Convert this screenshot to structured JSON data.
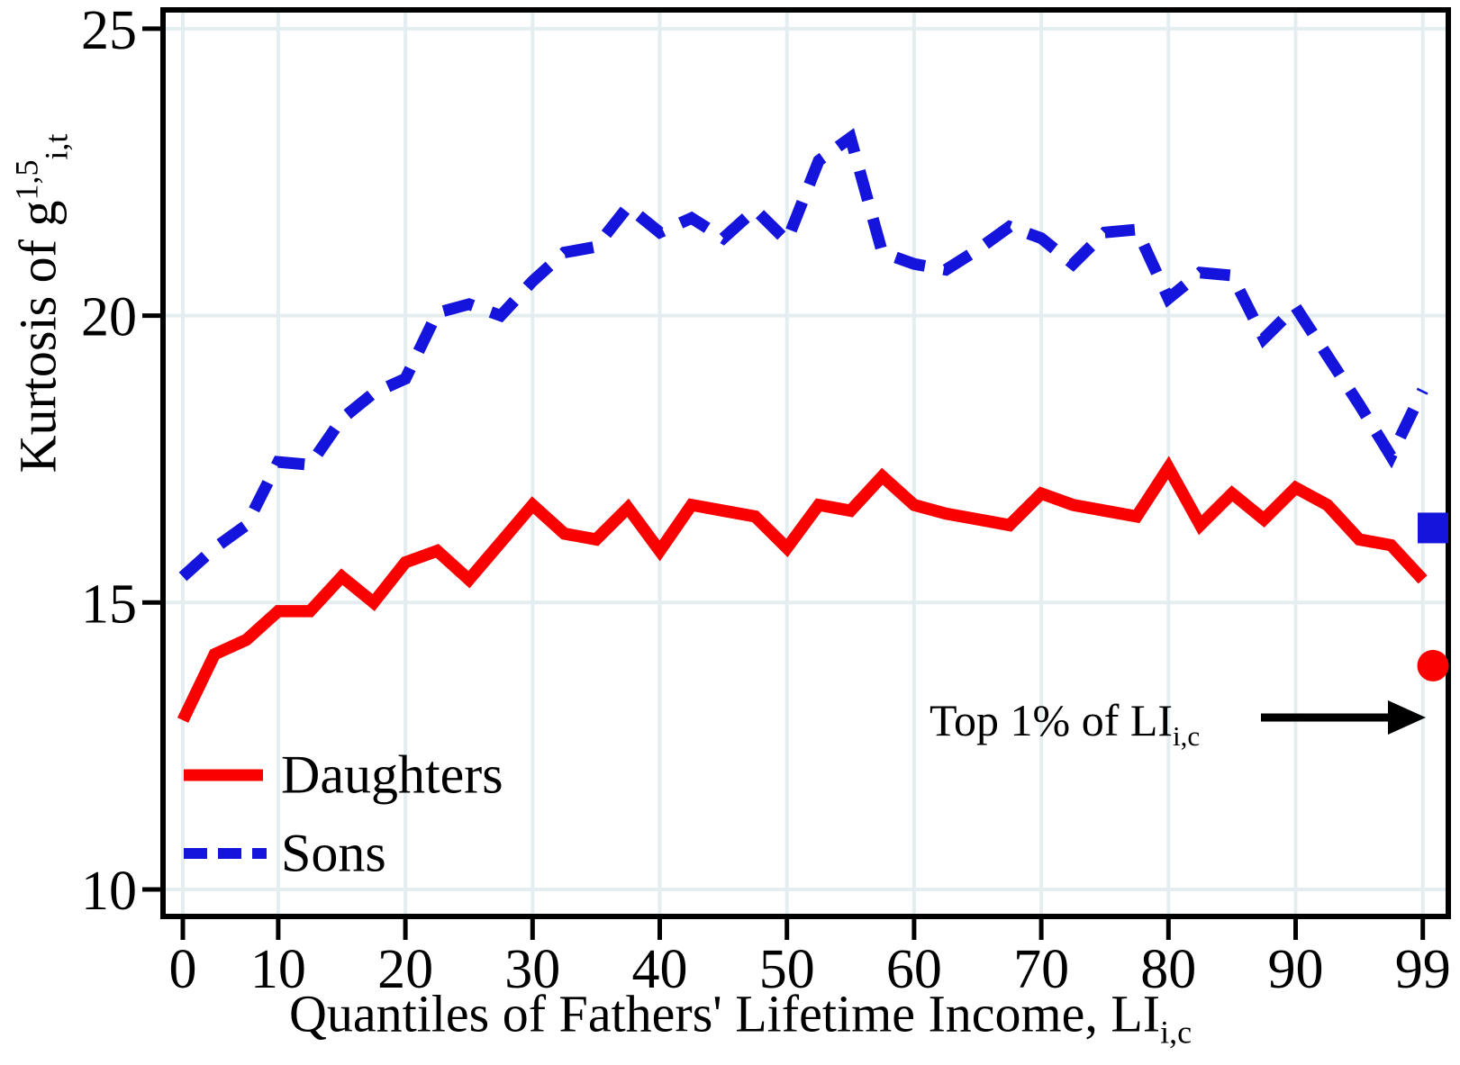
{
  "figure": {
    "background": "#ffffff",
    "ylabel": {
      "prefix": "Kurtosis of g",
      "sup": "1,5",
      "sub": "i,t"
    },
    "xlabel": {
      "prefix": "Quantiles of Fathers' Lifetime Income, LI",
      "sub": "i,c"
    },
    "annotation": {
      "prefix": "Top 1% of LI",
      "sub": "i,c"
    },
    "legend": {
      "daughters_label": "Daughters",
      "sons_label": "Sons"
    }
  },
  "chart_data": {
    "type": "line",
    "title": "",
    "xlabel": "Quantiles of Fathers' Lifetime Income, LI_{i,c}",
    "ylabel": "Kurtosis of g^{1,5}_{i,t}",
    "grid": true,
    "legend_position": "inside bottom-left",
    "x_axis": {
      "tick_labels": [
        "0",
        "10",
        "20",
        "30",
        "40",
        "50",
        "60",
        "70",
        "80",
        "90",
        "99"
      ],
      "tick_point_indices": [
        1,
        4,
        8,
        12,
        16,
        20,
        24,
        28,
        32,
        36,
        40
      ],
      "note": "40 evenly spaced quantile-bin points; separate top-1% markers plotted right of the 99 tick"
    },
    "y_axis": {
      "ticks": [
        10,
        15,
        20,
        25
      ],
      "ylim": [
        9.55,
        25.35
      ]
    },
    "series": [
      {
        "name": "Daughters",
        "color": "#fa0000",
        "style": "solid",
        "values": [
          12.95,
          14.1,
          14.35,
          14.85,
          14.85,
          15.45,
          15.0,
          15.7,
          15.9,
          15.4,
          16.05,
          16.7,
          16.2,
          16.1,
          16.65,
          15.9,
          16.7,
          16.6,
          16.5,
          15.95,
          16.7,
          16.6,
          17.2,
          16.7,
          16.55,
          16.45,
          16.35,
          16.9,
          16.7,
          16.6,
          16.5,
          17.35,
          16.35,
          16.9,
          16.45,
          17.0,
          16.7,
          16.1,
          16.0,
          15.4
        ]
      },
      {
        "name": "Sons",
        "color": "#1414dd",
        "style": "dashed",
        "values": [
          15.45,
          15.95,
          16.35,
          17.45,
          17.4,
          18.2,
          18.65,
          18.9,
          20.05,
          20.2,
          20.0,
          20.6,
          21.1,
          21.2,
          21.9,
          21.45,
          21.7,
          21.35,
          21.85,
          21.3,
          22.7,
          23.1,
          21.1,
          20.9,
          20.8,
          21.15,
          21.55,
          21.35,
          20.9,
          21.45,
          21.5,
          20.3,
          20.75,
          20.7,
          19.6,
          20.15,
          19.3,
          18.45,
          17.55,
          18.7
        ]
      }
    ],
    "top1_markers": [
      {
        "series": "Sons",
        "shape": "square",
        "color": "#1414dd",
        "value": 16.3
      },
      {
        "series": "Daughters",
        "shape": "circle",
        "color": "#fa0000",
        "value": 13.9
      }
    ],
    "annotation": {
      "text": "Top 1% of LI_{i,c}",
      "points_to": "top-1% markers at right edge"
    },
    "colors": {
      "daughters": "#fa0000",
      "sons": "#1414dd",
      "gridline": "#e4eef0",
      "axis": "#000000"
    }
  }
}
